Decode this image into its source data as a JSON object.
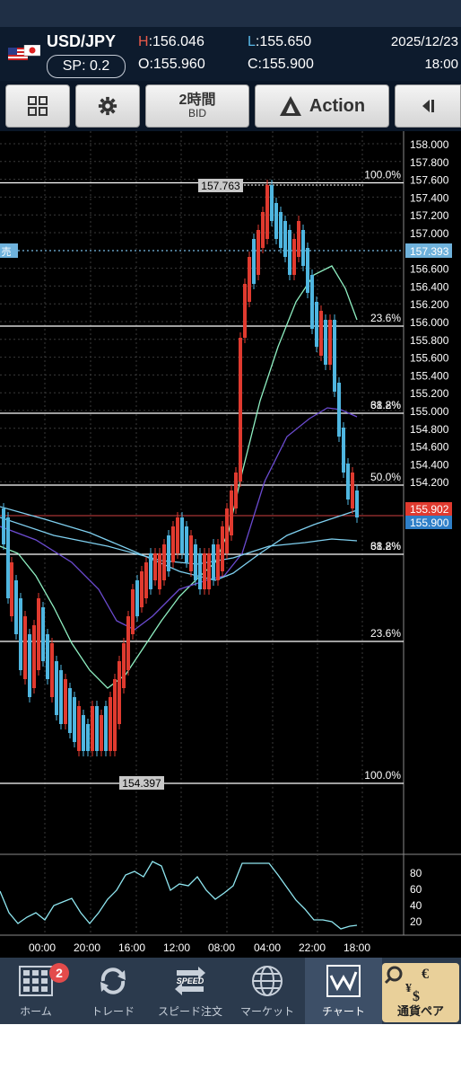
{
  "header": {
    "pair": "USD/JPY",
    "spread": "SP: 0.2",
    "high_key": "H",
    "high_val": ":156.046",
    "low_key": "L",
    "low_val": ":155.650",
    "open": "O:155.960",
    "close": "C:155.900",
    "date": "2025/12/23",
    "time": "18:00"
  },
  "toolbar": {
    "timeframe": "2時間",
    "price_type": "BID",
    "action_label": "Action"
  },
  "chart": {
    "y_ticks": [
      "158.000",
      "157.800",
      "157.600",
      "157.400",
      "157.200",
      "157.000",
      "156.800",
      "156.600",
      "156.400",
      "156.200",
      "156.000",
      "155.800",
      "155.600",
      "155.400",
      "155.200",
      "155.000",
      "154.800",
      "154.600",
      "154.400",
      "154.200"
    ],
    "fib_labels": [
      "100.0%",
      "23.6%",
      "38.2%",
      "61.8%",
      "50.0%",
      "61.8%",
      "38.2%",
      "23.6%",
      "100.0%"
    ],
    "high_label": "157.763",
    "low_label": "154.397",
    "sell_tag": "売",
    "sell_price": "157.393",
    "price_tag_red": "155.902",
    "price_tag_blue": "155.900",
    "osc_ticks": [
      "80",
      "60",
      "40",
      "20"
    ],
    "x_ticks": [
      "00:00",
      "20:00",
      "16:00",
      "12:00",
      "08:00",
      "04:00",
      "22:00",
      "18:00"
    ]
  },
  "nav": {
    "items": [
      {
        "label": "ホーム"
      },
      {
        "label": "トレード"
      },
      {
        "label": "スピード注文"
      },
      {
        "label": "マーケット"
      },
      {
        "label": "チャート"
      },
      {
        "label": "通貨ペア"
      }
    ],
    "badge": "2",
    "speed_text": "SPEED"
  },
  "colors": {
    "up": "#e03a2f",
    "down": "#4fb6e0",
    "ma_fast": "#8ff0c2",
    "ma_mid": "#6b4bd0",
    "ma_slow": "#7fd0f0",
    "osc": "#8fe6f0"
  }
}
